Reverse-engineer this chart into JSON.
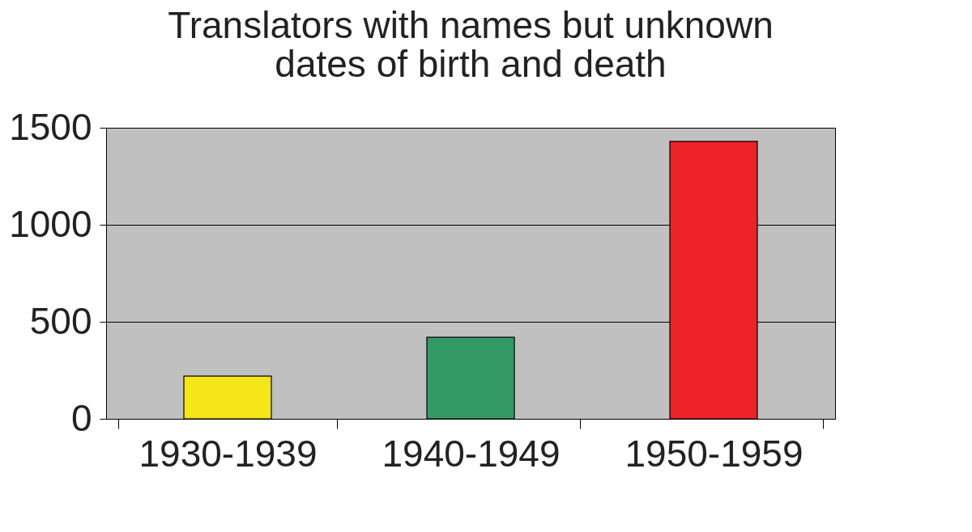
{
  "chart_data": {
    "type": "bar",
    "title": [
      "Translators with names but unknown",
      "dates of birth and death"
    ],
    "categories": [
      "1930-1939",
      "1940-1949",
      "1950-1959"
    ],
    "values": [
      220,
      420,
      1430
    ],
    "colors": [
      "#f5e61a",
      "#339966",
      "#ee2229"
    ],
    "ylim": [
      0,
      1500
    ],
    "yticks": [
      0,
      500,
      1000,
      1500
    ],
    "grid": "y"
  }
}
